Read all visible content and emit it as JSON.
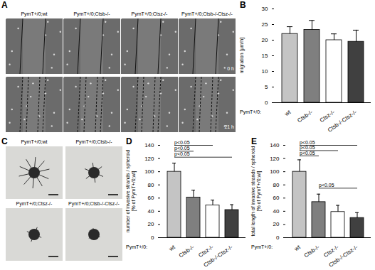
{
  "panels": [
    {
      "label": "A",
      "type": "image_grid",
      "columns": [
        "PymT+/0;wt",
        "PymT+/0;Ctsb-/-",
        "PymT+/0;Ctsz-/-",
        "PymT+/0;Ctsb-/-Ctsz-/-"
      ],
      "rows": [
        "0 h",
        "21 h"
      ]
    },
    {
      "label": "C",
      "type": "image_grid",
      "cells": [
        [
          "PymT+/0;wt",
          "PymT+/0;Ctsb-/-"
        ],
        [
          "PymT+/0;Ctsz-/-",
          "PymT+/0;Ctsb-/-Ctsz-/-"
        ]
      ]
    }
  ],
  "chart_data": [
    {
      "panel": "B",
      "type": "bar",
      "ylabel": [
        "migration [µm/h]"
      ],
      "xlabel": "PymT+/0:",
      "categories": [
        "wt",
        "Ctsb-/-",
        "Ctsz-/-",
        "Ctsb-/-Ctsz-/-"
      ],
      "values": [
        22,
        23.3,
        20,
        19.5
      ],
      "errors": [
        2.3,
        3,
        2,
        3.7
      ],
      "colors": [
        "#c4c4c4",
        "#7f7f7f",
        "#ffffff",
        "#404040"
      ],
      "ylim": [
        0,
        30
      ],
      "yticks": [
        0,
        5,
        10,
        15,
        20,
        25,
        30
      ]
    },
    {
      "panel": "D",
      "type": "bar",
      "ylabel": [
        "number of invasive strands / spheroid",
        "[% of PymT+/0;wt]"
      ],
      "xlabel": "PymT+/0:",
      "categories": [
        "wt",
        "Ctsb-/-",
        "Ctsz-/-",
        "Ctsb-/-Ctsz-/-"
      ],
      "values": [
        100,
        61,
        49,
        42
      ],
      "errors": [
        13,
        11,
        8,
        8
      ],
      "colors": [
        "#c4c4c4",
        "#7f7f7f",
        "#ffffff",
        "#404040"
      ],
      "ylim": [
        0,
        140
      ],
      "yticks": [
        0,
        20,
        40,
        60,
        80,
        100,
        120,
        140
      ],
      "comparisons": [
        {
          "from": "wt",
          "to": "Ctsz-/-",
          "y": 140,
          "label": "p<0.05"
        },
        {
          "from": "wt",
          "to": "Ctsb-/-",
          "y": 131,
          "label": "p<0.05"
        },
        {
          "from": "wt",
          "to": "Ctsb-/-Ctsz-/-",
          "y": 122,
          "label": "p<0.05"
        }
      ]
    },
    {
      "panel": "E",
      "type": "bar",
      "ylabel": [
        "total length of invasive strands / spheroid",
        "[% of PymT+/0;wt]"
      ],
      "xlabel": "PymT+/0:",
      "categories": [
        "wt",
        "Ctsb-/-",
        "Ctsz-/-",
        "Ctsb-/-Ctsz-/-"
      ],
      "values": [
        100,
        54,
        39,
        30
      ],
      "errors": [
        18,
        12,
        10,
        8
      ],
      "colors": [
        "#c4c4c4",
        "#7f7f7f",
        "#ffffff",
        "#404040"
      ],
      "ylim": [
        0,
        140
      ],
      "yticks": [
        0,
        20,
        40,
        60,
        80,
        100,
        120,
        140
      ],
      "comparisons": [
        {
          "from": "wt",
          "to": "Ctsb-/-Ctsz-/-",
          "y": 140,
          "label": "p<0.05"
        },
        {
          "from": "wt",
          "to": "Ctsz-/-",
          "y": 132,
          "label": "p<0.05"
        },
        {
          "from": "wt",
          "to": "Ctsb-/-",
          "y": 124,
          "label": "p<0.05"
        },
        {
          "from": "Ctsb-/-",
          "to": "Ctsb-/-Ctsz-/-",
          "y": 75,
          "label": "p<0.05"
        }
      ]
    }
  ]
}
